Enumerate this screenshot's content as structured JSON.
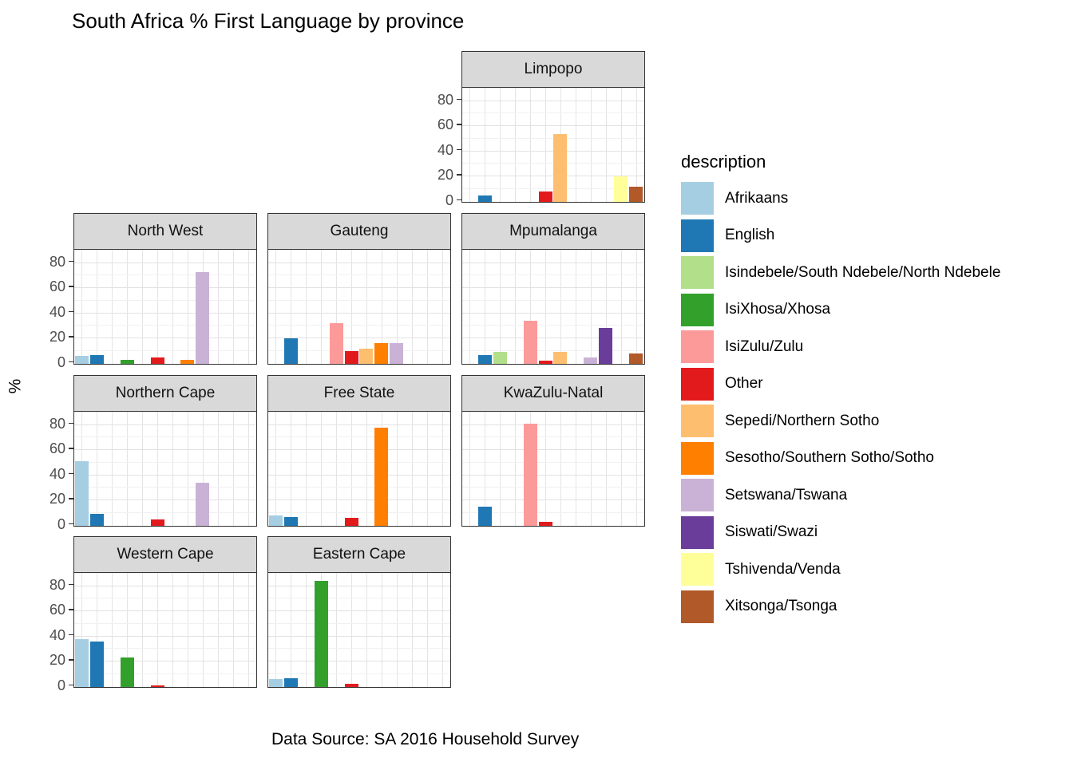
{
  "title": "South Africa % First Language by province",
  "caption": "Data Source: SA 2016 Household Survey",
  "y_axis": {
    "label": "%",
    "ticks": [
      0,
      20,
      40,
      60,
      80
    ]
  },
  "legend": {
    "title": "description",
    "position": "right"
  },
  "chart_data": {
    "type": "bar",
    "title": "South Africa % First Language by province",
    "xlabel": "",
    "ylabel": "%",
    "ylim": [
      0,
      89
    ],
    "yticks": [
      0,
      20,
      40,
      60,
      80
    ],
    "grid": true,
    "legend_title": "description",
    "legend_position": "right",
    "facet_by": "province",
    "categories": [
      "Afrikaans",
      "English",
      "Isindebele/South Ndebele/North Ndebele",
      "IsiXhosa/Xhosa",
      "IsiZulu/Zulu",
      "Other",
      "Sepedi/Northern Sotho",
      "Sesotho/Southern Sotho/Sotho",
      "Setswana/Tswana",
      "Siswati/Swazi",
      "Tshivenda/Venda",
      "Xitsonga/Tsonga"
    ],
    "colors": [
      "#a6cee3",
      "#1f78b4",
      "#b2df8a",
      "#33a02c",
      "#fb9a99",
      "#e31a1c",
      "#fdbf6f",
      "#ff7f00",
      "#cab2d6",
      "#6a3d9a",
      "#ffff99",
      "#b15928"
    ],
    "facets": [
      {
        "name": "Limpopo",
        "row": 1,
        "col": 3,
        "values": [
          0,
          5,
          0,
          0,
          0,
          8,
          54,
          0,
          0,
          0,
          20,
          12
        ]
      },
      {
        "name": "North West",
        "row": 2,
        "col": 1,
        "values": [
          6,
          7,
          0,
          3,
          0,
          5,
          0,
          3,
          73,
          0,
          0,
          0
        ]
      },
      {
        "name": "Gauteng",
        "row": 2,
        "col": 2,
        "values": [
          0,
          20,
          0,
          0,
          32,
          10,
          12,
          16,
          16,
          0,
          0,
          0
        ]
      },
      {
        "name": "Mpumalanga",
        "row": 2,
        "col": 3,
        "values": [
          0,
          7,
          9,
          0,
          34,
          2,
          9,
          0,
          5,
          28,
          0,
          8
        ]
      },
      {
        "name": "Northern Cape",
        "row": 3,
        "col": 1,
        "values": [
          51,
          9,
          0,
          0,
          0,
          5,
          0,
          0,
          34,
          0,
          0,
          0
        ]
      },
      {
        "name": "Free State",
        "row": 3,
        "col": 2,
        "values": [
          8,
          7,
          0,
          0,
          0,
          6,
          0,
          78,
          0,
          0,
          0,
          0
        ]
      },
      {
        "name": "KwaZulu-Natal",
        "row": 3,
        "col": 3,
        "values": [
          0,
          15,
          0,
          0,
          81,
          3,
          0,
          0,
          0,
          0,
          0,
          0
        ]
      },
      {
        "name": "Western Cape",
        "row": 4,
        "col": 1,
        "values": [
          38,
          36,
          0,
          23,
          0,
          1,
          0,
          0,
          0,
          0,
          0,
          0
        ]
      },
      {
        "name": "Eastern Cape",
        "row": 4,
        "col": 2,
        "values": [
          6,
          7,
          0,
          84,
          0,
          2,
          0,
          0,
          0,
          0,
          0,
          0
        ]
      }
    ],
    "strip_color": "#d9d9d9",
    "panel_color": "#ffffff"
  }
}
